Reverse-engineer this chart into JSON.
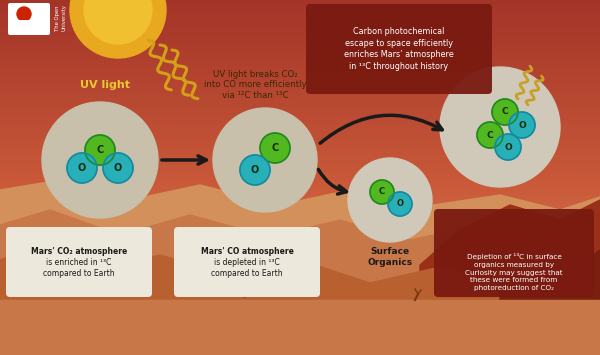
{
  "bg_top_left": "#a33428",
  "bg_top_right": "#c04030",
  "sky_mid": "#d86040",
  "sky_low": "#e09060",
  "sand1": "#d4885a",
  "sand2": "#c87040",
  "sand3": "#b85830",
  "sand_dark": "#8b3820",
  "rock_red": "#9b3018",
  "rock_dark": "#7a2010",
  "sun_outer": "#e8a820",
  "sun_inner": "#f0c030",
  "circle_bg": "#c8c0aa",
  "circle_bg2": "#d0c8b8",
  "green_atom": "#52b820",
  "teal_atom": "#28b0b8",
  "atom_border": "#208820",
  "teal_border": "#1888a0",
  "arrow_color": "#1a1a1a",
  "uv_color": "#d8a018",
  "title_box": "#7a1a10",
  "label_box_light": "#ede8dc",
  "label_box_dark": "#7a1a10",
  "uv_text_color": "#e8c830",
  "desc_text_color": "#3a2808",
  "white": "#ffffff",
  "dark_text": "#1a1a1a",
  "title_text": "Carbon photochemical\nescape to space efficiently\nenriches Mars’ atmosphere\nin ¹³C throughout history",
  "uv_label": "UV light",
  "uv_desc": "UV light breaks CO₂\ninto CO more efficiently\nvia ¹²C than ¹³C",
  "label1_bold": "Mars’ CO₂ atmosphere",
  "label1_rest": "is enriched in ¹³C\ncompared to Earth",
  "label2_bold": "Mars’ CO atmosphere",
  "label2_rest": "is depleted in ¹³C\ncompared to Earth",
  "label3": "Surface\nOrganics",
  "label4_bold": "Depletion of ¹³C in surface\norganics",
  "label4_rest": " measured by\nCuriosity",
  "label4_rest2": " may suggest that\nthese ",
  "label4_bold2": "were formed from\nphotoreduction of CO₂",
  "figsize": [
    6.0,
    3.55
  ],
  "dpi": 100
}
